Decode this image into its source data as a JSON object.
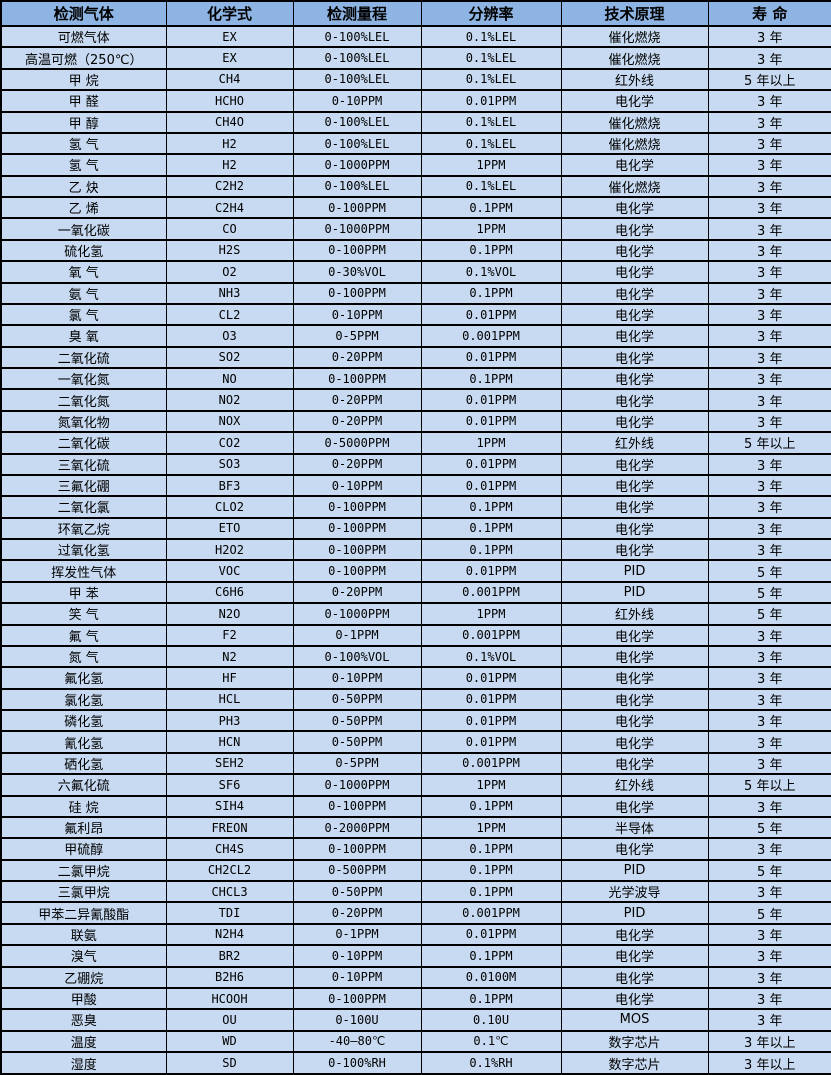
{
  "colors": {
    "header_bg": "#8DB4E2",
    "row_bg": "#C7DAF1",
    "border": "#000000",
    "text": "#000000"
  },
  "table": {
    "columns": [
      "检测气体",
      "化学式",
      "检测量程",
      "分辨率",
      "技术原理",
      "寿 命"
    ],
    "column_keys": [
      "gas",
      "formula",
      "range",
      "resolution",
      "principle",
      "lifespan"
    ],
    "rows": [
      [
        "可燃气体",
        "EX",
        "0-100%LEL",
        "0.1%LEL",
        "催化燃烧",
        "3 年"
      ],
      [
        "高温可燃（250℃）",
        "EX",
        "0-100%LEL",
        "0.1%LEL",
        "催化燃烧",
        "3 年"
      ],
      [
        "甲 烷",
        "CH4",
        "0-100%LEL",
        "0.1%LEL",
        "红外线",
        "5 年以上"
      ],
      [
        "甲 醛",
        "HCHO",
        "0-10PPM",
        "0.01PPM",
        "电化学",
        "3 年"
      ],
      [
        "甲 醇",
        "CH4O",
        "0-100%LEL",
        "0.1%LEL",
        "催化燃烧",
        "3 年"
      ],
      [
        "氢 气",
        "H2",
        "0-100%LEL",
        "0.1%LEL",
        "催化燃烧",
        "3 年"
      ],
      [
        "氢 气",
        "H2",
        "0-1000PPM",
        "1PPM",
        "电化学",
        "3 年"
      ],
      [
        "乙 炔",
        "C2H2",
        "0-100%LEL",
        "0.1%LEL",
        "催化燃烧",
        "3 年"
      ],
      [
        "乙 烯",
        "C2H4",
        "0-100PPM",
        "0.1PPM",
        "电化学",
        "3 年"
      ],
      [
        "一氧化碳",
        "CO",
        "0-1000PPM",
        "1PPM",
        "电化学",
        "3 年"
      ],
      [
        "硫化氢",
        "H2S",
        "0-100PPM",
        "0.1PPM",
        "电化学",
        "3 年"
      ],
      [
        "氧 气",
        "O2",
        "0-30%VOL",
        "0.1%VOL",
        "电化学",
        "3 年"
      ],
      [
        "氨 气",
        "NH3",
        "0-100PPM",
        "0.1PPM",
        "电化学",
        "3 年"
      ],
      [
        "氯 气",
        "CL2",
        "0-10PPM",
        "0.01PPM",
        "电化学",
        "3 年"
      ],
      [
        "臭 氧",
        "O3",
        "0-5PPM",
        "0.001PPM",
        "电化学",
        "3 年"
      ],
      [
        "二氧化硫",
        "SO2",
        "0-20PPM",
        "0.01PPM",
        "电化学",
        "3 年"
      ],
      [
        "一氧化氮",
        "NO",
        "0-100PPM",
        "0.1PPM",
        "电化学",
        "3 年"
      ],
      [
        "二氧化氮",
        "NO2",
        "0-20PPM",
        "0.01PPM",
        "电化学",
        "3 年"
      ],
      [
        "氮氧化物",
        "NOX",
        "0-20PPM",
        "0.01PPM",
        "电化学",
        "3 年"
      ],
      [
        "二氧化碳",
        "CO2",
        "0-5000PPM",
        "1PPM",
        "红外线",
        "5 年以上"
      ],
      [
        "三氧化硫",
        "SO3",
        "0-20PPM",
        "0.01PPM",
        "电化学",
        "3 年"
      ],
      [
        "三氟化硼",
        "BF3",
        "0-10PPM",
        "0.01PPM",
        "电化学",
        "3 年"
      ],
      [
        "二氧化氯",
        "CLO2",
        "0-100PPM",
        "0.1PPM",
        "电化学",
        "3 年"
      ],
      [
        "环氧乙烷",
        "ETO",
        "0-100PPM",
        "0.1PPM",
        "电化学",
        "3 年"
      ],
      [
        "过氧化氢",
        "H2O2",
        "0-100PPM",
        "0.1PPM",
        "电化学",
        "3 年"
      ],
      [
        "挥发性气体",
        "VOC",
        "0-100PPM",
        "0.01PPM",
        "PID",
        "5 年"
      ],
      [
        "甲 苯",
        "C6H6",
        "0-20PPM",
        "0.001PPM",
        "PID",
        "5 年"
      ],
      [
        "笑 气",
        "N2O",
        "0-1000PPM",
        "1PPM",
        "红外线",
        "5 年"
      ],
      [
        "氟 气",
        "F2",
        "0-1PPM",
        "0.001PPM",
        "电化学",
        "3 年"
      ],
      [
        "氮 气",
        "N2",
        "0-100%VOL",
        "0.1%VOL",
        "电化学",
        "3 年"
      ],
      [
        "氟化氢",
        "HF",
        "0-10PPM",
        "0.01PPM",
        "电化学",
        "3 年"
      ],
      [
        "氯化氢",
        "HCL",
        "0-50PPM",
        "0.01PPM",
        "电化学",
        "3 年"
      ],
      [
        "磷化氢",
        "PH3",
        "0-50PPM",
        "0.01PPM",
        "电化学",
        "3 年"
      ],
      [
        "氰化氢",
        "HCN",
        "0-50PPM",
        "0.01PPM",
        "电化学",
        "3 年"
      ],
      [
        "硒化氢",
        "SEH2",
        "0-5PPM",
        "0.001PPM",
        "电化学",
        "3 年"
      ],
      [
        "六氟化硫",
        "SF6",
        "0-1000PPM",
        "1PPM",
        "红外线",
        "5 年以上"
      ],
      [
        "硅 烷",
        "SIH4",
        "0-100PPM",
        "0.1PPM",
        "电化学",
        "3 年"
      ],
      [
        "氟利昂",
        "FREON",
        "0-2000PPM",
        "1PPM",
        "半导体",
        "5 年"
      ],
      [
        "甲硫醇",
        "CH4S",
        "0-100PPM",
        "0.1PPM",
        "电化学",
        "3 年"
      ],
      [
        "二氯甲烷",
        "CH2CL2",
        "0-500PPM",
        "0.1PPM",
        "PID",
        "5 年"
      ],
      [
        "三氯甲烷",
        "CHCL3",
        "0-50PPM",
        "0.1PPM",
        "光学波导",
        "3 年"
      ],
      [
        "甲苯二异氰酸酯",
        "TDI",
        "0-20PPM",
        "0.001PPM",
        "PID",
        "5 年"
      ],
      [
        "联氨",
        "N2H4",
        "0-1PPM",
        "0.01PPM",
        "电化学",
        "3 年"
      ],
      [
        "溴气",
        "BR2",
        "0-10PPM",
        "0.1PPM",
        "电化学",
        "3 年"
      ],
      [
        "乙硼烷",
        "B2H6",
        "0-10PPM",
        "0.0100M",
        "电化学",
        "3 年"
      ],
      [
        "甲酸",
        "HCOOH",
        "0-100PPM",
        "0.1PPM",
        "电化学",
        "3 年"
      ],
      [
        "恶臭",
        "OU",
        "0-100U",
        "0.10U",
        "MOS",
        "3 年"
      ],
      [
        "温度",
        "WD",
        "-40—80℃",
        "0.1℃",
        "数字芯片",
        "3 年以上"
      ],
      [
        "湿度",
        "SD",
        "0-100%RH",
        "0.1%RH",
        "数字芯片",
        "3 年以上"
      ]
    ]
  }
}
